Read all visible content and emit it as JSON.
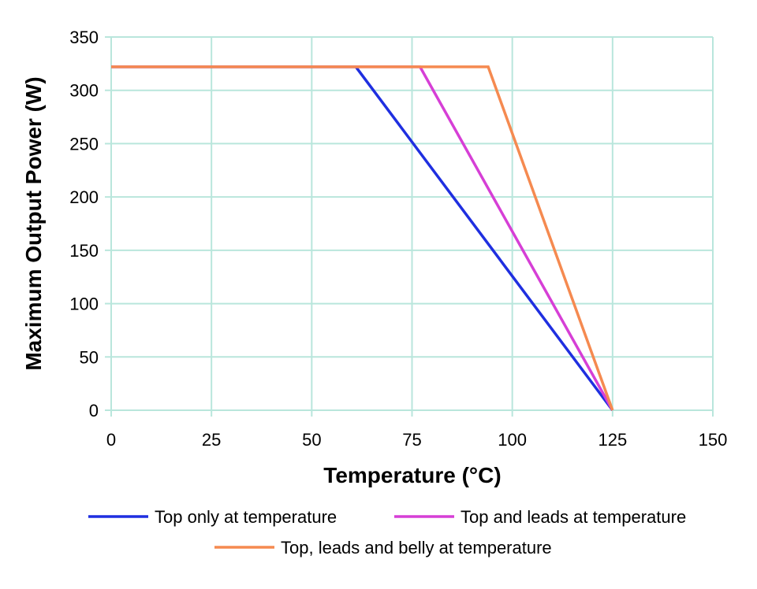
{
  "chart_data": {
    "type": "line",
    "title": "",
    "xlabel": "Temperature (°C)",
    "ylabel": "Maximum Output Power (W)",
    "xlim": [
      0,
      150
    ],
    "ylim": [
      0,
      350
    ],
    "xticks": [
      0,
      25,
      50,
      75,
      100,
      125,
      150
    ],
    "yticks": [
      0,
      50,
      100,
      150,
      200,
      250,
      300,
      350
    ],
    "grid": true,
    "legend_position": "bottom",
    "series": [
      {
        "name": "Top only at temperature",
        "color": "#1f2fe0",
        "points": [
          [
            0,
            322
          ],
          [
            61,
            322
          ],
          [
            125,
            0
          ]
        ]
      },
      {
        "name": "Top and leads at temperature",
        "color": "#d63fd6",
        "points": [
          [
            0,
            322
          ],
          [
            77,
            322
          ],
          [
            125,
            0
          ]
        ]
      },
      {
        "name": "Top, leads and belly at temperature",
        "color": "#f58a50",
        "points": [
          [
            0,
            322
          ],
          [
            94,
            322
          ],
          [
            125,
            0
          ]
        ]
      }
    ]
  },
  "colors": {
    "grid": "#b9e6dc",
    "axis": "#b9e6dc",
    "text": "#000000"
  }
}
